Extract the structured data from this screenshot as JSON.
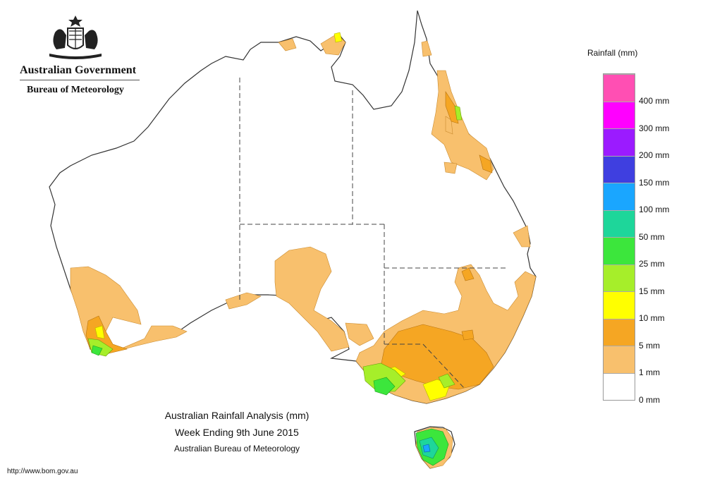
{
  "header": {
    "government": "Australian Government",
    "bureau": "Bureau of Meteorology",
    "crest_icon": "coat-of-arms-icon"
  },
  "legend": {
    "title": "Rainfall (mm)",
    "bands": [
      {
        "label": "400 mm",
        "color": "#ff4fb3"
      },
      {
        "label": "300 mm",
        "color": "#ff00ff"
      },
      {
        "label": "200 mm",
        "color": "#9b1bff"
      },
      {
        "label": "150 mm",
        "color": "#3f3fe0"
      },
      {
        "label": "100 mm",
        "color": "#1aa6ff"
      },
      {
        "label": "50 mm",
        "color": "#1ed69a"
      },
      {
        "label": "25 mm",
        "color": "#3ce63c"
      },
      {
        "label": "15 mm",
        "color": "#a6ee2a"
      },
      {
        "label": "10 mm",
        "color": "#ffff00"
      },
      {
        "label": "5 mm",
        "color": "#f5a623"
      },
      {
        "label": "1 mm",
        "color": "#f8c06d"
      },
      {
        "label": "0 mm",
        "color": "#ffffff"
      }
    ]
  },
  "map_title": {
    "line1": "Australian Rainfall Analysis (mm)",
    "line2": "Week Ending 9th June 2015",
    "line3": "Australian Bureau of Meteorology"
  },
  "footer": {
    "url": "http://www.bom.gov.au"
  },
  "colors": {
    "coast": "#333333",
    "border": "#444444",
    "light_rain": "#f8c06d",
    "rain_5mm": "#f5a623",
    "rain_10mm": "#ffff00",
    "rain_15mm": "#a6ee2a",
    "rain_25mm": "#3ce63c",
    "rain_50mm": "#1ed69a",
    "rain_100mm": "#1aa6ff"
  }
}
